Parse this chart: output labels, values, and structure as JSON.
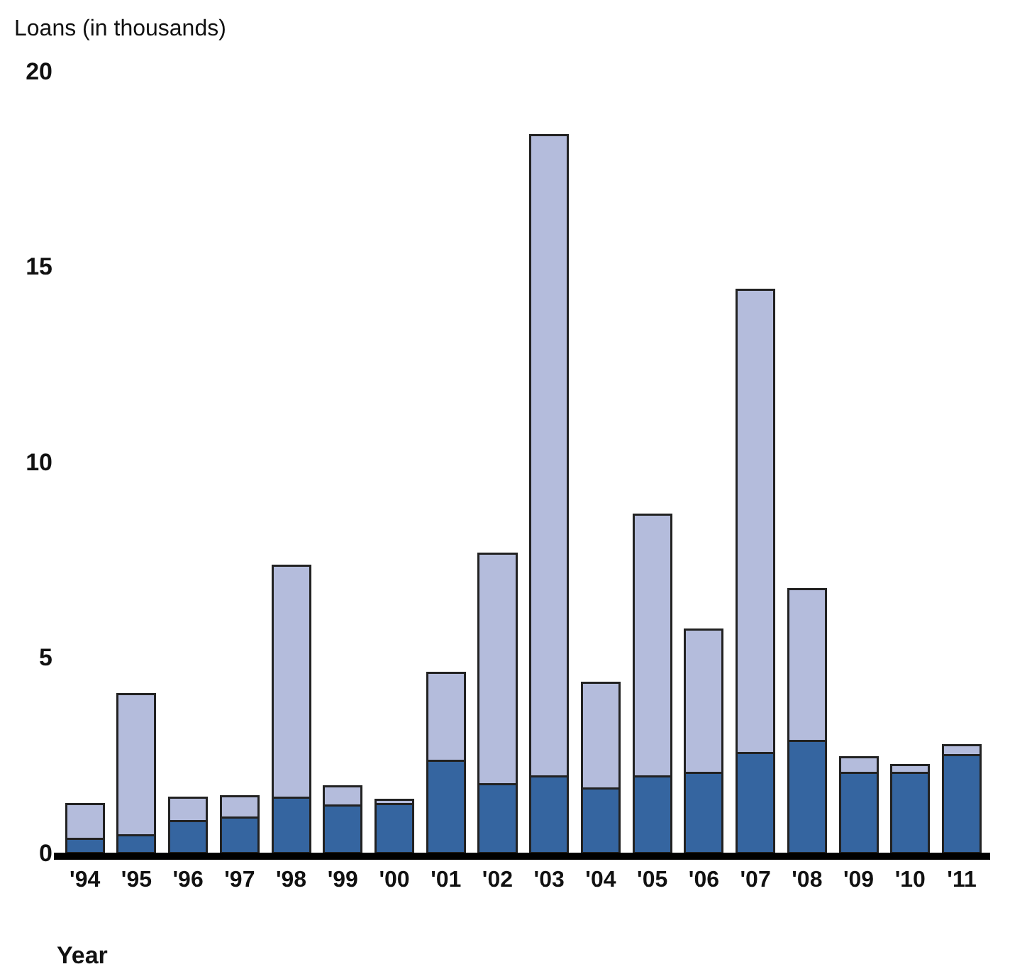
{
  "chart_data": {
    "type": "bar",
    "stacked": true,
    "ylabel": "Loans (in thousands)",
    "xlabel": "Year",
    "categories": [
      "'94",
      "'95",
      "'96",
      "'97",
      "'98",
      "'99",
      "'00",
      "'01",
      "'02",
      "'03",
      "'04",
      "'05",
      "'06",
      "'07",
      "'08",
      "'09",
      "'10",
      "'11"
    ],
    "series": [
      {
        "color": "#3565a0",
        "values": [
          0.35,
          0.45,
          0.8,
          0.9,
          1.4,
          1.2,
          1.25,
          2.35,
          1.75,
          1.95,
          1.65,
          1.95,
          2.05,
          2.55,
          2.85,
          2.05,
          2.05,
          2.5
        ]
      },
      {
        "color": "#b4bcdc",
        "values": [
          0.9,
          3.6,
          0.6,
          0.55,
          5.95,
          0.5,
          0.1,
          2.25,
          5.9,
          16.4,
          2.7,
          6.7,
          3.65,
          11.85,
          3.9,
          0.4,
          0.2,
          0.25
        ]
      }
    ],
    "ylim": [
      0,
      20
    ],
    "yticks": [
      0,
      5,
      10,
      15,
      20
    ],
    "grid": false
  }
}
